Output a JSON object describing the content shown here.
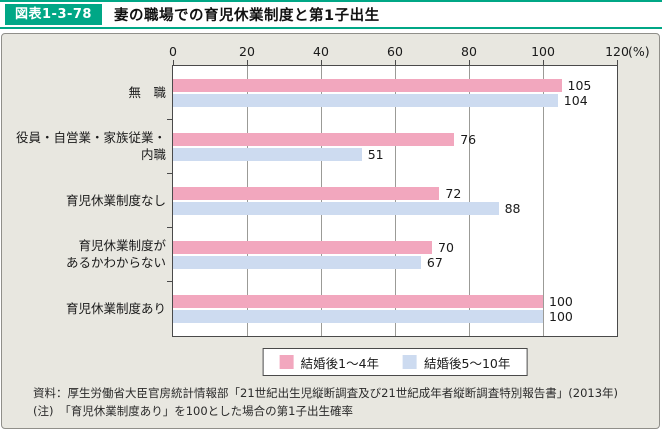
{
  "colors": {
    "teal": "#00a786",
    "panel_bg": "#e8e7e0",
    "panel_border": "#908f8a",
    "plot_border": "#4a4a4a",
    "gridline": "#9b9b97",
    "pink": "#f2a7be",
    "blue": "#cddbf0"
  },
  "header": {
    "badge": "図表1-3-78",
    "title": "妻の職場での育児休業制度と第1子出生"
  },
  "chart_data": {
    "type": "bar",
    "orientation": "horizontal",
    "title": "妻の職場での育児休業制度と第1子出生",
    "xlabel": "(%)",
    "xlim": [
      0,
      120
    ],
    "x_ticks": [
      0,
      20,
      40,
      60,
      80,
      100,
      120
    ],
    "grid": true,
    "legend_position": "bottom",
    "categories": [
      "無　職",
      "役員・自営業・家族従業・内職",
      "育児休業制度なし",
      "育児休業制度が\nあるかわからない",
      "育児休業制度あり"
    ],
    "series": [
      {
        "name": "結婚後1～4年",
        "color": "#f2a7be",
        "values": [
          105,
          76,
          72,
          70,
          100
        ]
      },
      {
        "name": "結婚後5～10年",
        "color": "#cddbf0",
        "values": [
          104,
          51,
          88,
          67,
          100
        ]
      }
    ]
  },
  "axis": {
    "unit_label": "(%)"
  },
  "footer": {
    "source": "資料：厚生労働省大臣官房統計情報部「21世紀出生児縦断調査及び21世紀成年者縦断調査特別報告書」(2013年)",
    "note": "(注)　「育児休業制度あり」を100とした場合の第1子出生確率"
  }
}
